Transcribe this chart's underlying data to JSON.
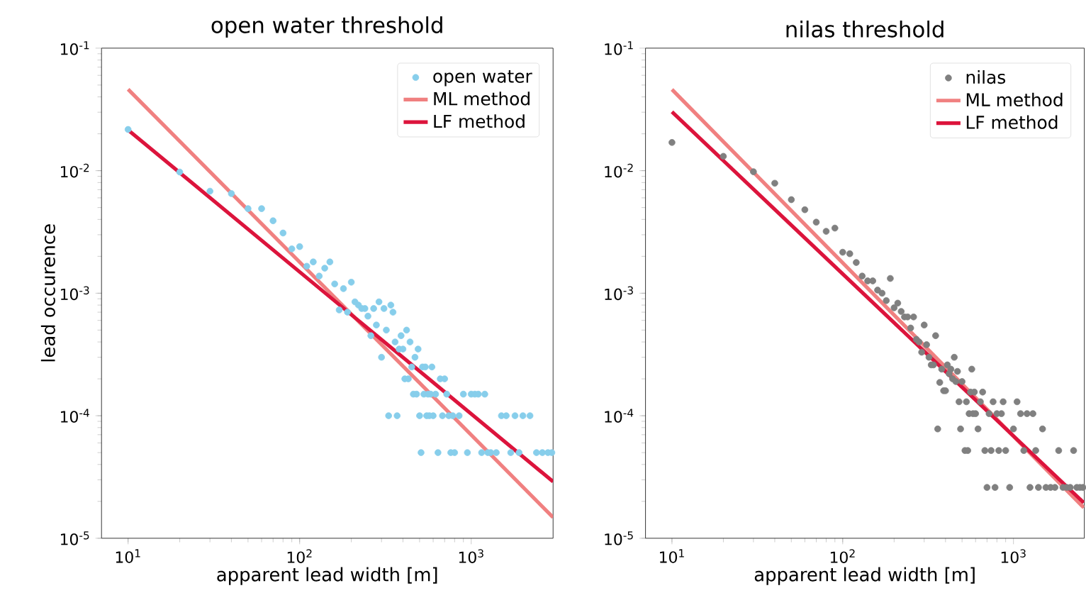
{
  "chart_data": [
    {
      "type": "scatter",
      "marker": "circle",
      "title": "open water threshold",
      "xlabel": "apparent lead width [m]",
      "ylabel": "lead occurence",
      "log": "xy",
      "legend": "top right",
      "xlim": [
        7,
        3000
      ],
      "ylim": [
        1e-05,
        0.1
      ],
      "xticks": [
        {
          "value": 10,
          "label": "10$^{1}$"
        },
        {
          "value": 100,
          "label": "10$^{2}$"
        },
        {
          "value": 1000,
          "label": "10$^{3}$"
        }
      ],
      "yticks": [
        {
          "value": 1e-05,
          "label": "10$^{-5}$"
        },
        {
          "value": 0.0001,
          "label": "10$^{-4}$"
        },
        {
          "value": 0.001,
          "label": "10$^{-3}$"
        },
        {
          "value": 0.01,
          "label": "10$^{-2}$"
        },
        {
          "value": 0.1,
          "label": "10$^{-1}$"
        }
      ],
      "series": [
        {
          "name": "open water",
          "color": "#87ceeb",
          "x": [
            10,
            20,
            30,
            40,
            50,
            60,
            70,
            80,
            90,
            100,
            110,
            120,
            130,
            140,
            150,
            160,
            170,
            180,
            190,
            200,
            210,
            220,
            230,
            240,
            250,
            260,
            270,
            280,
            290,
            300,
            310,
            320,
            330,
            340,
            350,
            360,
            370,
            380,
            390,
            400,
            410,
            420,
            430,
            440,
            450,
            460,
            470,
            480,
            490,
            500,
            510,
            520,
            530,
            540,
            550,
            560,
            570,
            580,
            590,
            600,
            620,
            640,
            660,
            680,
            700,
            720,
            740,
            760,
            780,
            800,
            850,
            900,
            950,
            1000,
            1050,
            1100,
            1150,
            1200,
            1250,
            1300,
            1400,
            1500,
            1600,
            1700,
            1800,
            1900,
            2000,
            2200,
            2400,
            2600,
            2800,
            2950
          ],
          "values": [
            0.0217,
            0.00975,
            0.0068,
            0.0065,
            0.0049,
            0.0049,
            0.0039,
            0.0031,
            0.0023,
            0.0024,
            0.00166,
            0.0018,
            0.00138,
            0.0016,
            0.0018,
            0.00119,
            0.00073,
            0.00109,
            0.0007,
            0.00123,
            0.00085,
            0.0008,
            0.00075,
            0.00075,
            0.00065,
            0.00045,
            0.00075,
            0.00055,
            0.00085,
            0.0003,
            0.00075,
            0.0005,
            0.0001,
            0.0008,
            0.0007,
            0.0004,
            0.0001,
            0.00035,
            0.00045,
            0.00035,
            0.0002,
            0.0005,
            0.0002,
            0.0004,
            0.00025,
            0.00015,
            0.0003,
            0.00015,
            0.00035,
            0.0001,
            5e-05,
            0.00025,
            0.00015,
            0.00025,
            0.0001,
            0.00015,
            0.0001,
            0.00015,
            0.00025,
            0.0001,
            0.00015,
            5e-05,
            0.0002,
            0.0001,
            0.0002,
            0.00015,
            0.0001,
            5e-05,
            0.0001,
            5e-05,
            0.0001,
            0.00015,
            5e-05,
            0.00015,
            0.00015,
            0.00015,
            5e-05,
            0.00015,
            5e-05,
            5e-05,
            5e-05,
            0.0001,
            0.0001,
            5e-05,
            0.0001,
            5e-05,
            0.0001,
            0.0001,
            5e-05,
            5e-05,
            5e-05,
            5e-05
          ]
        },
        {
          "name": "ML method",
          "type": "line",
          "marker": "none",
          "color": "#f08080",
          "x": [
            10,
            3000
          ],
          "values": [
            0.0462,
            1.48e-05
          ]
        },
        {
          "name": "LF method",
          "type": "line",
          "marker": "none",
          "color": "#dc143c",
          "x": [
            10,
            3000
          ],
          "values": [
            0.0215,
            2.9e-05
          ]
        }
      ]
    },
    {
      "type": "scatter",
      "marker": "circle",
      "title": "nilas threshold",
      "xlabel": "apparent lead width [m]",
      "log": "xy",
      "legend": "top right",
      "xlim": [
        7,
        2600
      ],
      "ylim": [
        1e-05,
        0.1
      ],
      "xticks": [
        {
          "value": 10,
          "label": "10$^{1}$"
        },
        {
          "value": 100,
          "label": "10$^{2}$"
        },
        {
          "value": 1000,
          "label": "10$^{3}$"
        }
      ],
      "yticks": [
        {
          "value": 1e-05,
          "label": "10$^{-5}$"
        },
        {
          "value": 0.0001,
          "label": "10$^{-4}$"
        },
        {
          "value": 0.001,
          "label": "10$^{-3}$"
        },
        {
          "value": 0.01,
          "label": "10$^{-2}$"
        },
        {
          "value": 0.1,
          "label": "10$^{-1}$"
        }
      ],
      "series": [
        {
          "name": "nilas",
          "color": "#808080",
          "x": [
            10,
            20,
            30,
            40,
            50,
            60,
            70,
            80,
            90,
            100,
            110,
            120,
            130,
            140,
            150,
            160,
            170,
            180,
            190,
            200,
            210,
            220,
            230,
            240,
            250,
            260,
            270,
            280,
            290,
            300,
            310,
            320,
            330,
            340,
            350,
            360,
            370,
            380,
            390,
            400,
            410,
            420,
            430,
            440,
            450,
            460,
            470,
            480,
            490,
            500,
            520,
            530,
            540,
            550,
            560,
            570,
            580,
            590,
            600,
            620,
            640,
            660,
            680,
            700,
            720,
            740,
            760,
            780,
            800,
            820,
            850,
            870,
            900,
            950,
            1000,
            1050,
            1100,
            1150,
            1200,
            1250,
            1300,
            1350,
            1400,
            1480,
            1550,
            1650,
            1750,
            1840,
            1950,
            2050,
            2150,
            2250,
            2350,
            2450,
            2550
          ],
          "values": [
            0.017,
            0.0131,
            0.0098,
            0.0079,
            0.0058,
            0.0048,
            0.0038,
            0.0032,
            0.0034,
            0.00216,
            0.0021,
            0.00178,
            0.00138,
            0.00126,
            0.00126,
            0.00106,
            0.001,
            0.00087,
            0.00132,
            0.00076,
            0.00083,
            0.00071,
            0.00064,
            0.00064,
            0.00052,
            0.00064,
            0.00042,
            0.0004,
            0.00033,
            0.00055,
            0.00038,
            0.0003,
            0.00026,
            0.00026,
            0.00045,
            7.8e-05,
            0.000187,
            0.00024,
            0.00016,
            0.00016,
            0.00026,
            0.00022,
            0.00024,
            0.0002,
            0.0003,
            0.00019,
            0.00023,
            0.00013,
            7.8e-05,
            0.00019,
            5.2e-05,
            0.00013,
            5.2e-05,
            0.000104,
            0.000156,
            0.00024,
            0.000104,
            0.000156,
            0.000104,
            7.8e-05,
            0.00013,
            0.000156,
            5.2e-05,
            2.6e-05,
            0.000104,
            5.2e-05,
            0.00013,
            2.6e-05,
            0.000104,
            5.2e-05,
            0.000104,
            0.00013,
            5.2e-05,
            2.6e-05,
            7.8e-05,
            0.00013,
            0.000104,
            5.2e-05,
            0.000104,
            2.6e-05,
            0.000104,
            5.2e-05,
            2.6e-05,
            7.8e-05,
            2.6e-05,
            2.6e-05,
            2.6e-05,
            5.2e-05,
            2.6e-05,
            2.6e-05,
            2.6e-05,
            5.2e-05,
            2.6e-05,
            2.6e-05,
            2.6e-05
          ]
        },
        {
          "name": "ML method",
          "type": "line",
          "marker": "none",
          "color": "#f08080",
          "x": [
            10,
            2580
          ],
          "values": [
            0.046,
            1.78e-05
          ]
        },
        {
          "name": "LF method",
          "type": "line",
          "marker": "none",
          "color": "#dc143c",
          "x": [
            10,
            2580
          ],
          "values": [
            0.0302,
            1.95e-05
          ]
        }
      ]
    }
  ]
}
